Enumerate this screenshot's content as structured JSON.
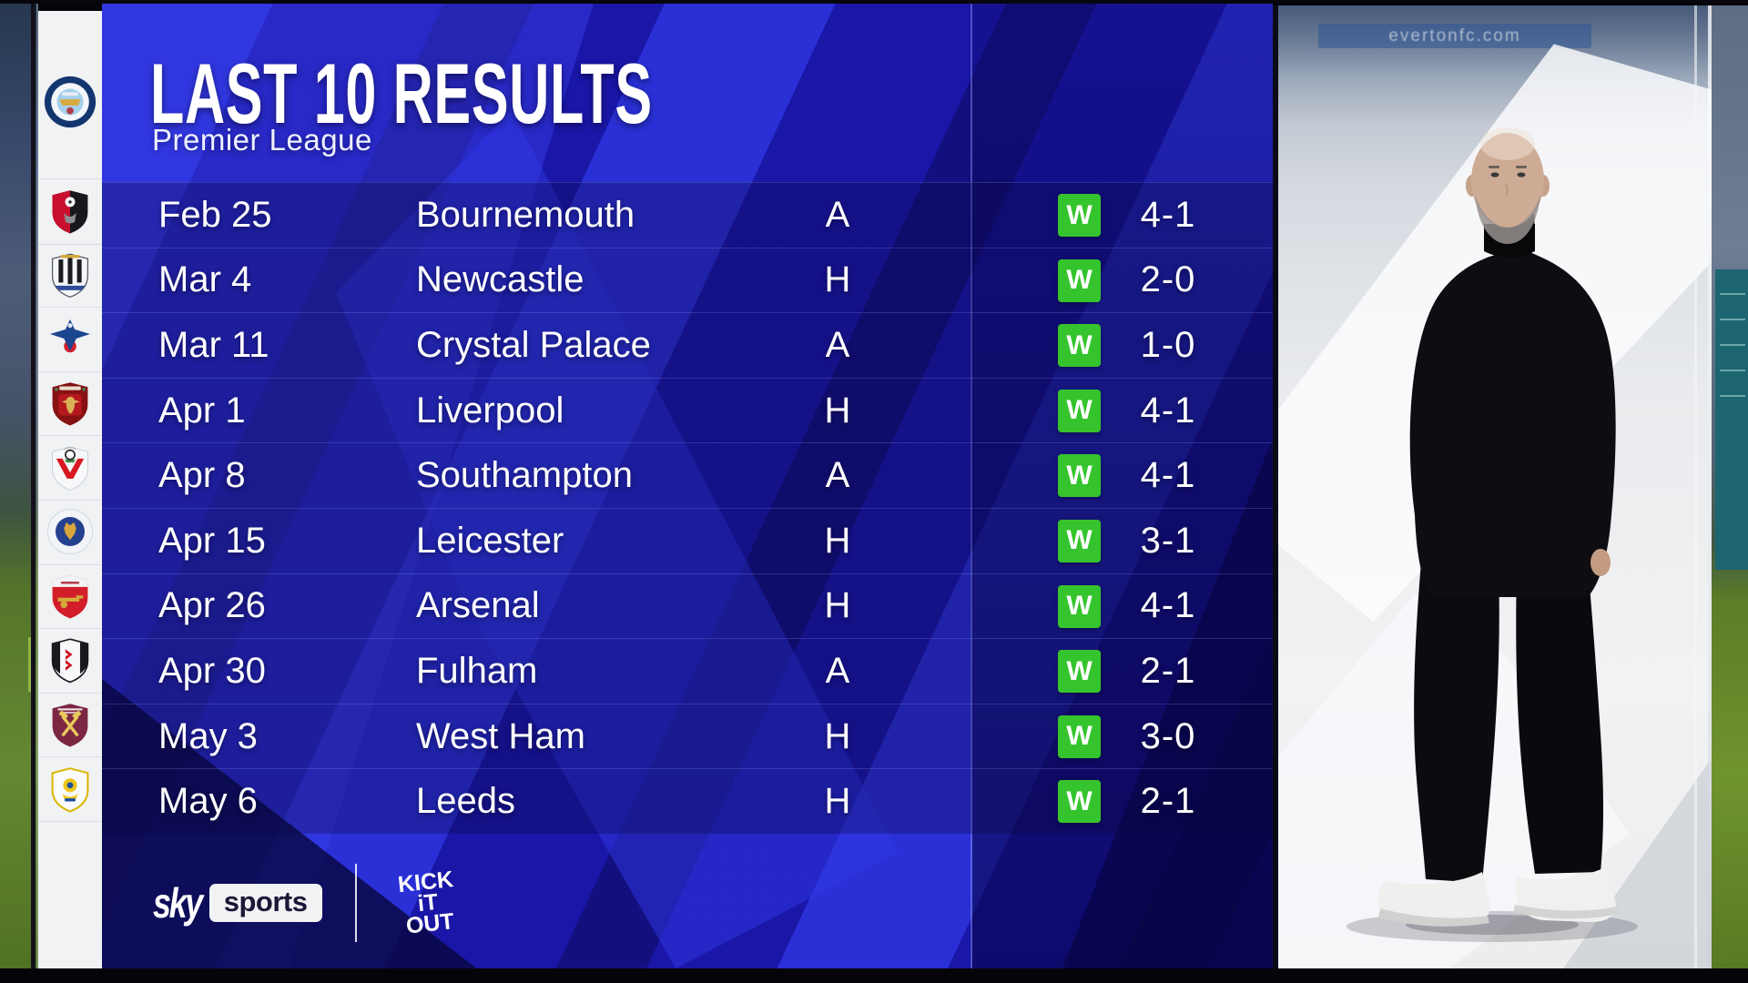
{
  "header": {
    "title": "LAST 10 RESULTS",
    "subtitle": "Premier League"
  },
  "team": {
    "name": "Manchester City",
    "badge": "manchester-city"
  },
  "results": [
    {
      "date": "Feb 25",
      "opponent": "Bournemouth",
      "venue": "A",
      "outcome": "W",
      "score": "4-1",
      "badge": "bournemouth"
    },
    {
      "date": "Mar 4",
      "opponent": "Newcastle",
      "venue": "H",
      "outcome": "W",
      "score": "2-0",
      "badge": "newcastle"
    },
    {
      "date": "Mar 11",
      "opponent": "Crystal Palace",
      "venue": "A",
      "outcome": "W",
      "score": "1-0",
      "badge": "crystal-palace"
    },
    {
      "date": "Apr 1",
      "opponent": "Liverpool",
      "venue": "H",
      "outcome": "W",
      "score": "4-1",
      "badge": "liverpool"
    },
    {
      "date": "Apr 8",
      "opponent": "Southampton",
      "venue": "A",
      "outcome": "W",
      "score": "4-1",
      "badge": "southampton"
    },
    {
      "date": "Apr 15",
      "opponent": "Leicester",
      "venue": "H",
      "outcome": "W",
      "score": "3-1",
      "badge": "leicester"
    },
    {
      "date": "Apr 26",
      "opponent": "Arsenal",
      "venue": "H",
      "outcome": "W",
      "score": "4-1",
      "badge": "arsenal"
    },
    {
      "date": "Apr 30",
      "opponent": "Fulham",
      "venue": "A",
      "outcome": "W",
      "score": "2-1",
      "badge": "fulham"
    },
    {
      "date": "May 3",
      "opponent": "West Ham",
      "venue": "H",
      "outcome": "W",
      "score": "3-0",
      "badge": "west-ham"
    },
    {
      "date": "May 6",
      "opponent": "Leeds",
      "venue": "H",
      "outcome": "W",
      "score": "2-1",
      "badge": "leeds"
    }
  ],
  "footer": {
    "sky": "sky",
    "sports": "sports",
    "kick_it_out": [
      "KICK",
      "iT",
      "OUT"
    ]
  },
  "photo": {
    "sign": "evertonfc.com",
    "figure": "Pep Guardiola"
  },
  "colors": {
    "panel_blue": "#17149a",
    "stripe_light": "#2d35e0",
    "stripe_dark": "#120e7a",
    "win_green": "#35c42d",
    "strip_white": "#f1f2f4",
    "text": "#ffffff",
    "sky_box_text": "#1a1736"
  }
}
